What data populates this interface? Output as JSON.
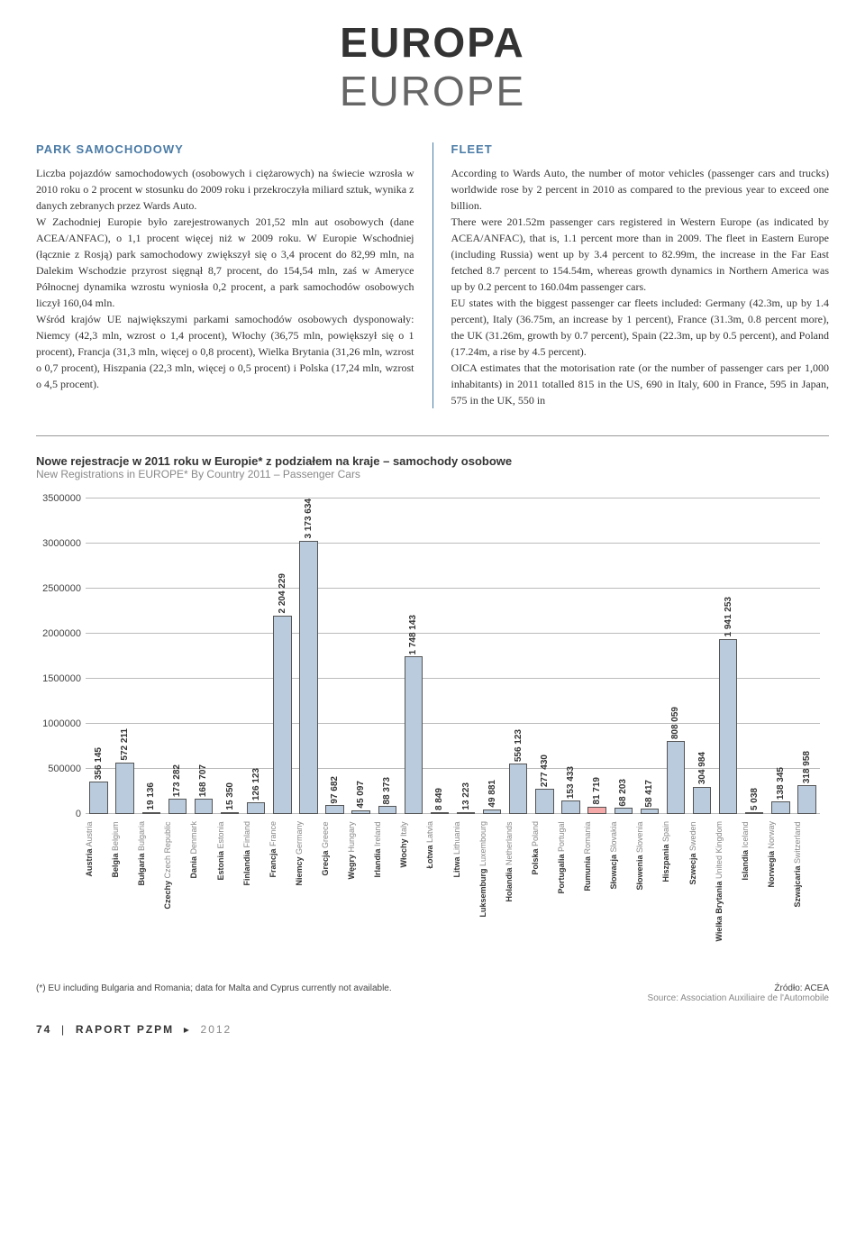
{
  "header": {
    "title_pl": "EUROPA",
    "title_en": "EUROPE",
    "title_fontsize": "46px"
  },
  "left_col": {
    "heading": "PARK SAMOCHODOWY",
    "heading_color": "#4a7ba6",
    "heading_fontsize": "13px",
    "body": "Liczba pojazdów samochodowych (osobowych i ciężarowych) na świecie wzrosła w 2010 roku o 2 procent w stosunku do 2009 roku i przekroczyła miliard sztuk, wynika z danych zebranych przez Wards Auto.\nW Zachodniej Europie było zarejestrowanych 201,52 mln aut osobowych (dane ACEA/ANFAC), o 1,1 procent więcej niż w 2009 roku. W Europie Wschodniej (łącznie z Rosją) park samochodowy zwiększył się o 3,4 procent do 82,99 mln, na Dalekim Wschodzie przyrost sięgnął 8,7 procent, do 154,54 mln, zaś w Ameryce Północnej dynamika wzrostu wyniosła 0,2 procent, a park samochodów osobowych liczył 160,04 mln.\nWśród krajów UE największymi parkami samochodów osobowych dysponowały: Niemcy (42,3 mln, wzrost o 1,4 procent), Włochy (36,75 mln, powiększył się o 1 procent), Francja (31,3 mln, więcej o 0,8 procent), Wielka Brytania (31,26 mln, wzrost o 0,7 procent), Hiszpania (22,3 mln, więcej o 0,5 procent) i Polska (17,24 mln, wzrost o 4,5 procent).",
    "body_fontsize": "12px"
  },
  "right_col": {
    "heading": "FLEET",
    "heading_color": "#4a7ba6",
    "heading_fontsize": "13px",
    "body": "According to Wards Auto, the number of motor vehicles (passenger cars and trucks) worldwide rose by 2 percent in 2010 as compared to the previous year to exceed one billion.\nThere were 201.52m passenger cars registered in Western Europe (as indicated by ACEA/ANFAC), that is, 1.1 percent more than in 2009. The fleet in Eastern Europe (including Russia) went up by 3.4 percent to 82.99m, the increase in the Far East fetched 8.7 percent to 154.54m, whereas growth dynamics in Northern America was up by 0.2 percent to 160.04m passenger cars.\nEU states with the biggest passenger car fleets included: Germany (42.3m, up by 1.4 percent), Italy (36.75m, an increase by 1 percent), France (31.3m, 0.8 percent more), the UK (31.26m, growth by 0.7 percent), Spain (22.3m, up by 0.5 percent), and Poland (17.24m, a rise by 4.5 percent).\nOICA estimates that the motorisation rate (or the number of passenger cars per 1,000 inhabitants) in 2011 totalled 815 in the US, 690 in Italy, 600 in France, 595 in Japan, 575 in the UK, 550 in",
    "body_fontsize": "12px"
  },
  "chart": {
    "title_pl": "Nowe rejestracje w 2011 roku w Europie* z podziałem na kraje – samochody osobowe",
    "title_en": "New Registrations in EUROPE* By Country 2011 – Passenger Cars",
    "title_fontsize": "13px",
    "subtitle_fontsize": "12px",
    "type": "bar",
    "ylim": [
      0,
      3500000
    ],
    "yticks": [
      0,
      500000,
      1000000,
      1500000,
      2000000,
      2500000,
      3000000,
      3500000
    ],
    "grid_color": "#bbbbbb",
    "bar_border": "#555555",
    "default_fill": "#b9cbdd",
    "highlight_fill": "#f5a9a9",
    "highlight_index": 19,
    "background_color": "#ffffff",
    "categories": [
      {
        "pl": "Austria",
        "en": "Austria",
        "value": 356145,
        "label": "356 145"
      },
      {
        "pl": "Belgia",
        "en": "Belgium",
        "value": 572211,
        "label": "572 211"
      },
      {
        "pl": "Bułgaria",
        "en": "Bulgaria",
        "value": 19136,
        "label": "19 136"
      },
      {
        "pl": "Czechy",
        "en": "Czech Republic",
        "value": 173282,
        "label": "173 282"
      },
      {
        "pl": "Dania",
        "en": "Denmark",
        "value": 168707,
        "label": "168 707"
      },
      {
        "pl": "Estonia",
        "en": "Estonia",
        "value": 15350,
        "label": "15 350"
      },
      {
        "pl": "Finlandia",
        "en": "Finland",
        "value": 126123,
        "label": "126 123"
      },
      {
        "pl": "Francja",
        "en": "France",
        "value": 2204229,
        "label": "2 204 229"
      },
      {
        "pl": "Niemcy",
        "en": "Germany",
        "value": 3173634,
        "label": "3 173 634"
      },
      {
        "pl": "Grecja",
        "en": "Greece",
        "value": 97682,
        "label": "97 682"
      },
      {
        "pl": "Węgry",
        "en": "Hungary",
        "value": 45097,
        "label": "45 097"
      },
      {
        "pl": "Irlandia",
        "en": "Ireland",
        "value": 88373,
        "label": "88 373"
      },
      {
        "pl": "Włochy",
        "en": "Italy",
        "value": 1748143,
        "label": "1 748 143"
      },
      {
        "pl": "Łotwa",
        "en": "Latvia",
        "value": 8849,
        "label": "8 849"
      },
      {
        "pl": "Litwa",
        "en": "Lithuania",
        "value": 13223,
        "label": "13 223"
      },
      {
        "pl": "Luksemburg",
        "en": "Luxembourg",
        "value": 49881,
        "label": "49 881"
      },
      {
        "pl": "Holandia",
        "en": "Netherlands",
        "value": 556123,
        "label": "556 123"
      },
      {
        "pl": "Polska",
        "en": "Poland",
        "value": 277430,
        "label": "277 430"
      },
      {
        "pl": "Portugalia",
        "en": "Portugal",
        "value": 153433,
        "label": "153 433"
      },
      {
        "pl": "Rumunia",
        "en": "Romania",
        "value": 81719,
        "label": "81 719"
      },
      {
        "pl": "Słowacja",
        "en": "Slovakia",
        "value": 68203,
        "label": "68 203"
      },
      {
        "pl": "Słowenia",
        "en": "Slovenia",
        "value": 58417,
        "label": "58 417"
      },
      {
        "pl": "Hiszpania",
        "en": "Spain",
        "value": 808059,
        "label": "808 059"
      },
      {
        "pl": "Szwecja",
        "en": "Sweden",
        "value": 304984,
        "label": "304 984"
      },
      {
        "pl": "Wielka Brytania",
        "en": "United Kingdom",
        "value": 1941253,
        "label": "1 941 253"
      },
      {
        "pl": "Islandia",
        "en": "Iceland",
        "value": 5038,
        "label": "5 038"
      },
      {
        "pl": "Norwegia",
        "en": "Norway",
        "value": 138345,
        "label": "138 345"
      },
      {
        "pl": "Szwajcaria",
        "en": "Switzerland",
        "value": 318958,
        "label": "318 958"
      }
    ],
    "footnote_left": "(*) EU including Bulgaria and Romania; data for Malta and Cyprus currently not available.",
    "footnote_right_pl": "Źródło: ACEA",
    "footnote_right_en": "Source: Association Auxiliaire de l'Automobile"
  },
  "footer": {
    "page_number": "74",
    "report": "RAPORT PZPM",
    "year": "2012"
  }
}
